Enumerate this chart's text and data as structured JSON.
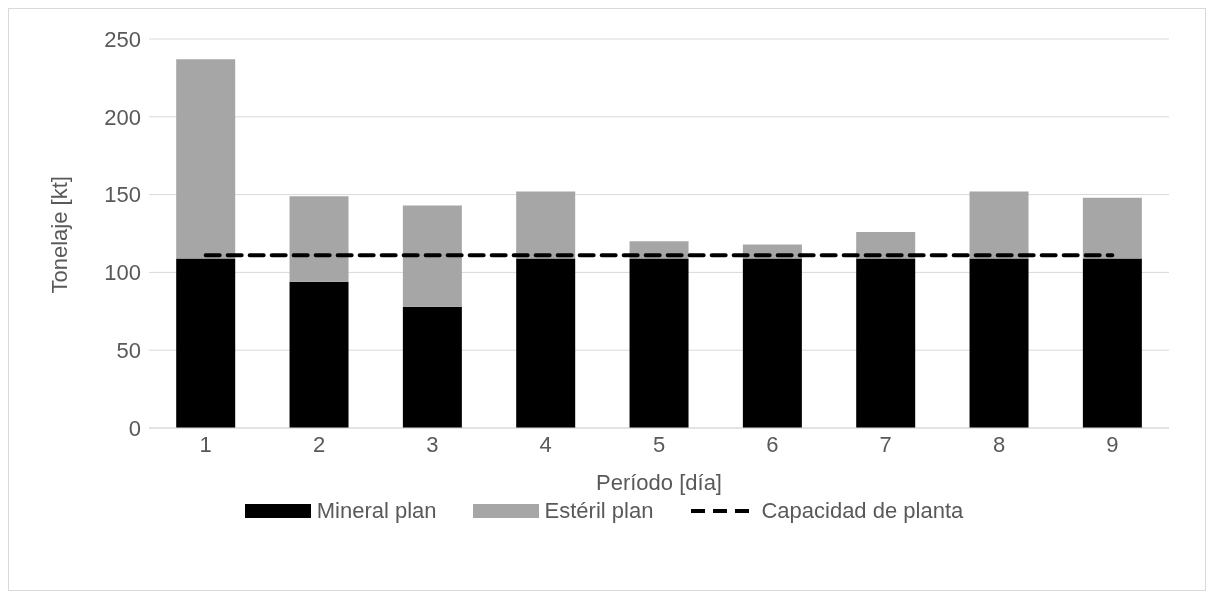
{
  "chart_data": {
    "type": "bar",
    "xlabel": "Período [día]",
    "ylabel": "Tonelaje [kt]",
    "categories": [
      "1",
      "2",
      "3",
      "4",
      "5",
      "6",
      "7",
      "8",
      "9"
    ],
    "stacked": true,
    "series": [
      {
        "name": "Mineral plan",
        "color": "#000000",
        "values": [
          109,
          94,
          78,
          109,
          109,
          109,
          109,
          109,
          109
        ]
      },
      {
        "name": "Estéril plan",
        "color": "#a6a6a6",
        "values": [
          128,
          55,
          65,
          43,
          11,
          9,
          17,
          43,
          39
        ]
      },
      {
        "name": "Capacidad de planta",
        "type": "line",
        "color": "#000000",
        "line_style": "dashed",
        "marker": "none",
        "values": [
          111,
          111,
          111,
          111,
          111,
          111,
          111,
          111,
          111
        ]
      }
    ],
    "ylim": [
      0,
      250
    ],
    "yticks": [
      0,
      50,
      100,
      150,
      200,
      250
    ],
    "grid": "y",
    "legend": "bottom"
  }
}
